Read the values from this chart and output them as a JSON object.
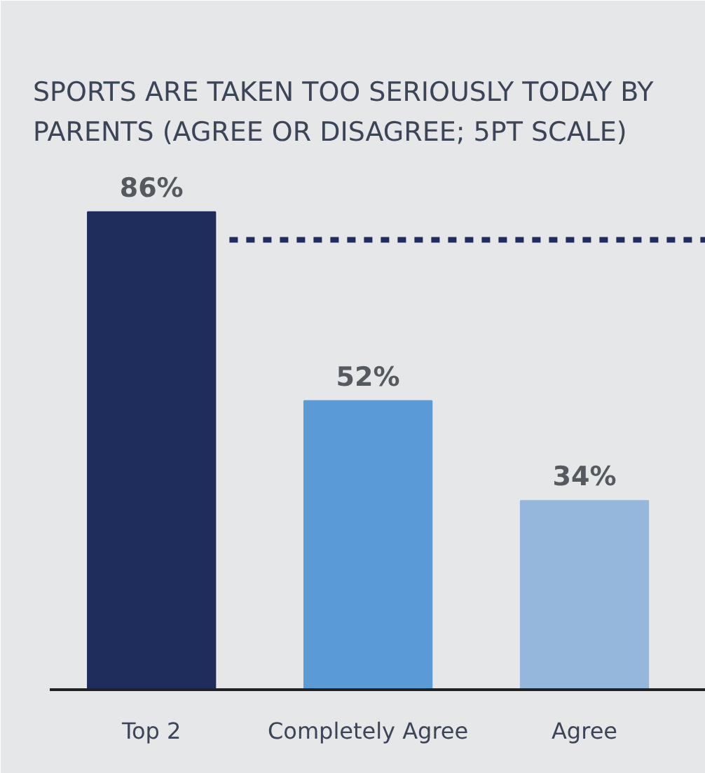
{
  "chart_data": {
    "type": "bar",
    "title": "SPORTS ARE TAKEN TOO SERIOUSLY TODAY BY\nPARENTS (AGREE OR DISAGREE; 5PT SCALE)",
    "categories": [
      "Top 2",
      "Completely Agree",
      "Agree"
    ],
    "values": [
      86,
      52,
      34
    ],
    "colors": [
      "#1f2d5c",
      "#5b9bd5",
      "#95b7db"
    ],
    "value_labels": [
      "86%",
      "52%",
      "34%"
    ],
    "ref_lines": [
      {
        "axis": "y",
        "value": 81,
        "color": "#1f2d5c",
        "line_style": "dashed"
      }
    ]
  }
}
